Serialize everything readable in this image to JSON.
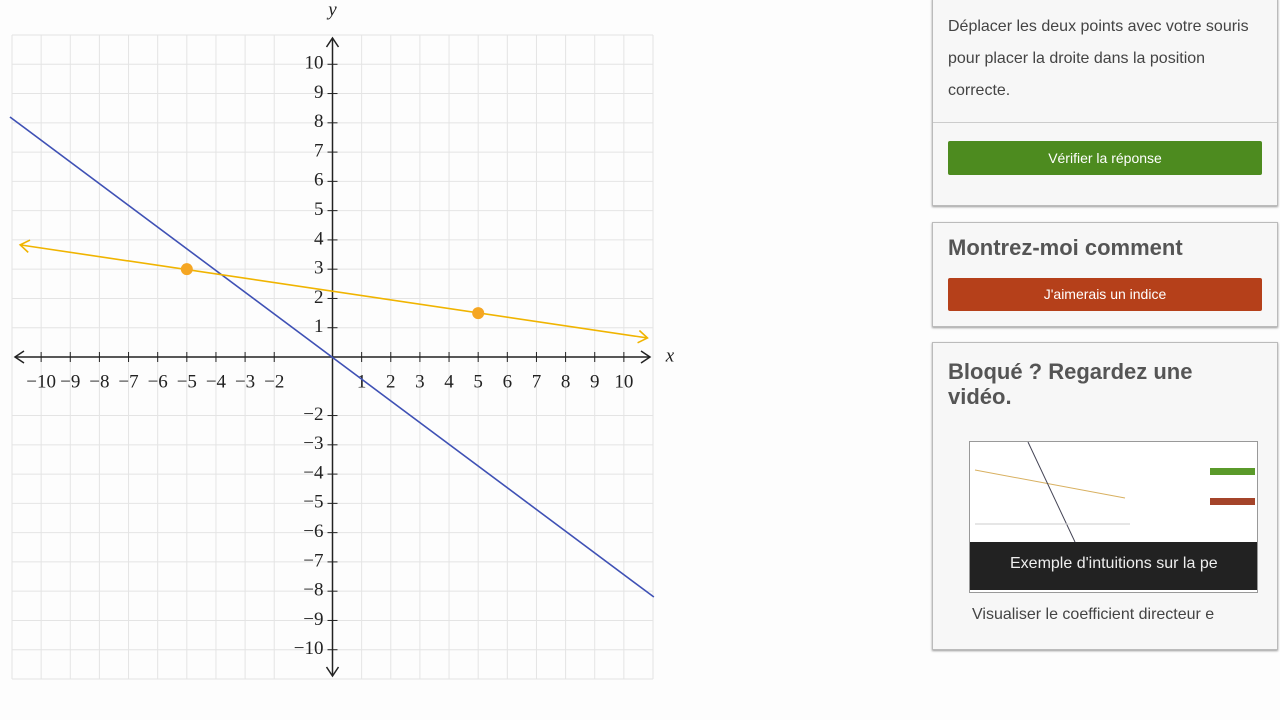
{
  "graph": {
    "x_label": "x",
    "y_label": "y",
    "xlim": [
      -11,
      11
    ],
    "ylim": [
      -11,
      11
    ],
    "xticks": [
      {
        "value": -10,
        "label": "−10"
      },
      {
        "value": -9,
        "label": "−9"
      },
      {
        "value": -8,
        "label": "−8"
      },
      {
        "value": -7,
        "label": "−7"
      },
      {
        "value": -6,
        "label": "−6"
      },
      {
        "value": -5,
        "label": "−5"
      },
      {
        "value": -4,
        "label": "−4"
      },
      {
        "value": -3,
        "label": "−3"
      },
      {
        "value": -2,
        "label": "−2"
      },
      1,
      2,
      3,
      4,
      5,
      6,
      7,
      8,
      9,
      10
    ],
    "yticks": [
      {
        "value": -10,
        "label": "−10"
      },
      {
        "value": -9,
        "label": "−9"
      },
      {
        "value": -8,
        "label": "−8"
      },
      {
        "value": -7,
        "label": "−7"
      },
      {
        "value": -6,
        "label": "−6"
      },
      {
        "value": -5,
        "label": "−5"
      },
      {
        "value": -4,
        "label": "−4"
      },
      {
        "value": -3,
        "label": "−3"
      },
      {
        "value": -2,
        "label": "−2"
      },
      1,
      2,
      3,
      4,
      5,
      6,
      7,
      8,
      9,
      10
    ],
    "lines": [
      {
        "color": "#3f51b5",
        "x": [
          -11.07,
          11.03
        ],
        "y": [
          8.2,
          -8.2
        ]
      },
      {
        "color": "#f0b400",
        "x": [
          -10.72,
          10.81
        ],
        "y": [
          3.83,
          0.65
        ]
      }
    ],
    "points": {
      "color": "#f5a623",
      "x": [
        -5,
        5
      ],
      "y": [
        3,
        1.5
      ]
    }
  },
  "sidebar": {
    "instructions": "Déplacer les deux points avec votre souris pour placer la droite dans la position correcte.",
    "check_button": "Vérifier la réponse",
    "hint_heading": "Montrez-moi comment",
    "hint_button": "J'aimerais un indice",
    "video_heading": "Bloqué ? Regardez une vidéo.",
    "video_caption": "Exemple d'intuitions sur la pe",
    "video_link": "Visualiser le coefficient directeur e"
  }
}
